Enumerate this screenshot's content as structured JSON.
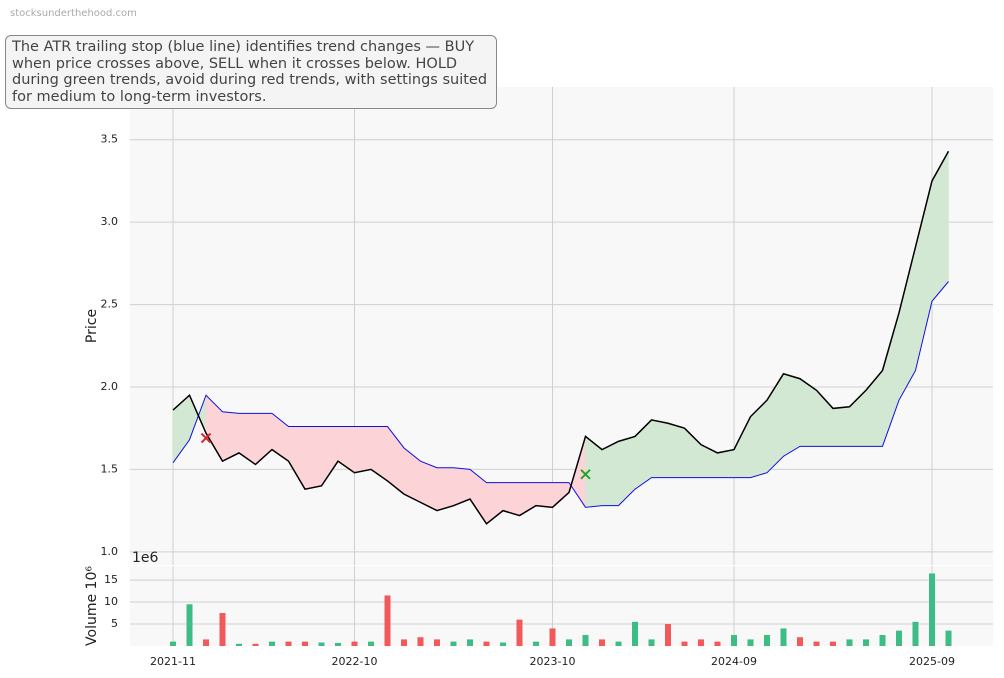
{
  "watermark": "stocksunderthehood.com",
  "annotation": "The ATR trailing stop (blue line) identifies trend changes — BUY when price crosses above, SELL when it crosses below. HOLD during green trends, avoid during red trends, with settings suited for medium to long-term investors.",
  "chart_data": [
    {
      "type": "line",
      "y_label": "Price",
      "categories": [
        "2021-11",
        "2021-12",
        "2022-01",
        "2022-02",
        "2022-03",
        "2022-04",
        "2022-05",
        "2022-06",
        "2022-07",
        "2022-08",
        "2022-09",
        "2022-10",
        "2022-11",
        "2022-12",
        "2023-01",
        "2023-02",
        "2023-03",
        "2023-04",
        "2023-05",
        "2023-06",
        "2023-07",
        "2023-08",
        "2023-09",
        "2023-10",
        "2023-11",
        "2023-12",
        "2024-01",
        "2024-02",
        "2024-03",
        "2024-04",
        "2024-05",
        "2024-06",
        "2024-07",
        "2024-08",
        "2024-09",
        "2024-10",
        "2024-11",
        "2024-12",
        "2025-01",
        "2025-02",
        "2025-03",
        "2025-04",
        "2025-05",
        "2025-06",
        "2025-07",
        "2025-08",
        "2025-09",
        "2025-10"
      ],
      "xticks": [
        "2021-11",
        "2022-10",
        "2023-10",
        "2024-09",
        "2025-09"
      ],
      "series": [
        {
          "color": "#000000",
          "values": [
            1.86,
            1.95,
            1.72,
            1.55,
            1.6,
            1.53,
            1.62,
            1.55,
            1.38,
            1.4,
            1.55,
            1.48,
            1.5,
            1.43,
            1.35,
            1.3,
            1.25,
            1.28,
            1.32,
            1.17,
            1.25,
            1.22,
            1.28,
            1.27,
            1.36,
            1.7,
            1.62,
            1.67,
            1.7,
            1.8,
            1.78,
            1.75,
            1.65,
            1.6,
            1.62,
            1.82,
            1.92,
            2.08,
            2.05,
            1.98,
            1.87,
            1.88,
            1.98,
            2.1,
            2.45,
            2.85,
            3.25,
            3.43
          ]
        },
        {
          "color": "#1010dd",
          "values": [
            1.54,
            1.68,
            1.95,
            1.85,
            1.84,
            1.84,
            1.84,
            1.76,
            1.76,
            1.76,
            1.76,
            1.76,
            1.76,
            1.76,
            1.63,
            1.55,
            1.51,
            1.51,
            1.5,
            1.42,
            1.42,
            1.42,
            1.42,
            1.42,
            1.42,
            1.27,
            1.28,
            1.28,
            1.38,
            1.45,
            1.45,
            1.45,
            1.45,
            1.45,
            1.45,
            1.45,
            1.48,
            1.58,
            1.64,
            1.64,
            1.64,
            1.64,
            1.64,
            1.64,
            1.92,
            2.1,
            2.52,
            2.64
          ]
        }
      ],
      "up_color": "#d3e8d3",
      "down_color": "#fcd3d6",
      "markers": [
        {
          "category": "2022-01",
          "value": 1.69,
          "color": "#d62728"
        },
        {
          "category": "2023-12",
          "value": 1.47,
          "color": "#2ca02c"
        }
      ],
      "ylim": [
        0.92,
        3.82
      ],
      "yticks": [
        {
          "value": 1,
          "label": "1.0"
        },
        1.5,
        {
          "value": 2,
          "label": "2.0"
        },
        2.5,
        {
          "value": 3,
          "label": "3.0"
        },
        3.5
      ],
      "grid": true
    },
    {
      "type": "bar",
      "y_label": "Volume  10⁶",
      "offset_label": "1e6",
      "categories": [
        "2021-11",
        "2021-12",
        "2022-01",
        "2022-02",
        "2022-03",
        "2022-04",
        "2022-05",
        "2022-06",
        "2022-07",
        "2022-08",
        "2022-09",
        "2022-10",
        "2022-11",
        "2022-12",
        "2023-01",
        "2023-02",
        "2023-03",
        "2023-04",
        "2023-05",
        "2023-06",
        "2023-07",
        "2023-08",
        "2023-09",
        "2023-10",
        "2023-11",
        "2023-12",
        "2024-01",
        "2024-02",
        "2024-03",
        "2024-04",
        "2024-05",
        "2024-06",
        "2024-07",
        "2024-08",
        "2024-09",
        "2024-10",
        "2024-11",
        "2024-12",
        "2025-01",
        "2025-02",
        "2025-03",
        "2025-04",
        "2025-05",
        "2025-06",
        "2025-07",
        "2025-08",
        "2025-09",
        "2025-10"
      ],
      "xticks": [
        "2021-11",
        "2022-10",
        "2023-10",
        "2024-09",
        "2025-09"
      ],
      "values": [
        1,
        9.5,
        1.5,
        7.5,
        0.5,
        0.5,
        1,
        1,
        1,
        0.8,
        0.7,
        1,
        1,
        11.5,
        1.5,
        2,
        1.5,
        1,
        1.5,
        1,
        0.8,
        6,
        1,
        4,
        1.5,
        2.5,
        1.5,
        1,
        5.5,
        1.5,
        5,
        1,
        1.5,
        1,
        2.5,
        1.5,
        2.5,
        4,
        2,
        1,
        1,
        1.5,
        1.5,
        2.5,
        3.5,
        5.5,
        16.5,
        3.5
      ],
      "up_color": "#3dbd85",
      "down_color": "#f05a5a",
      "ylim": [
        0,
        18.2
      ],
      "yticks": [
        5,
        10,
        15
      ],
      "grid": true
    }
  ]
}
